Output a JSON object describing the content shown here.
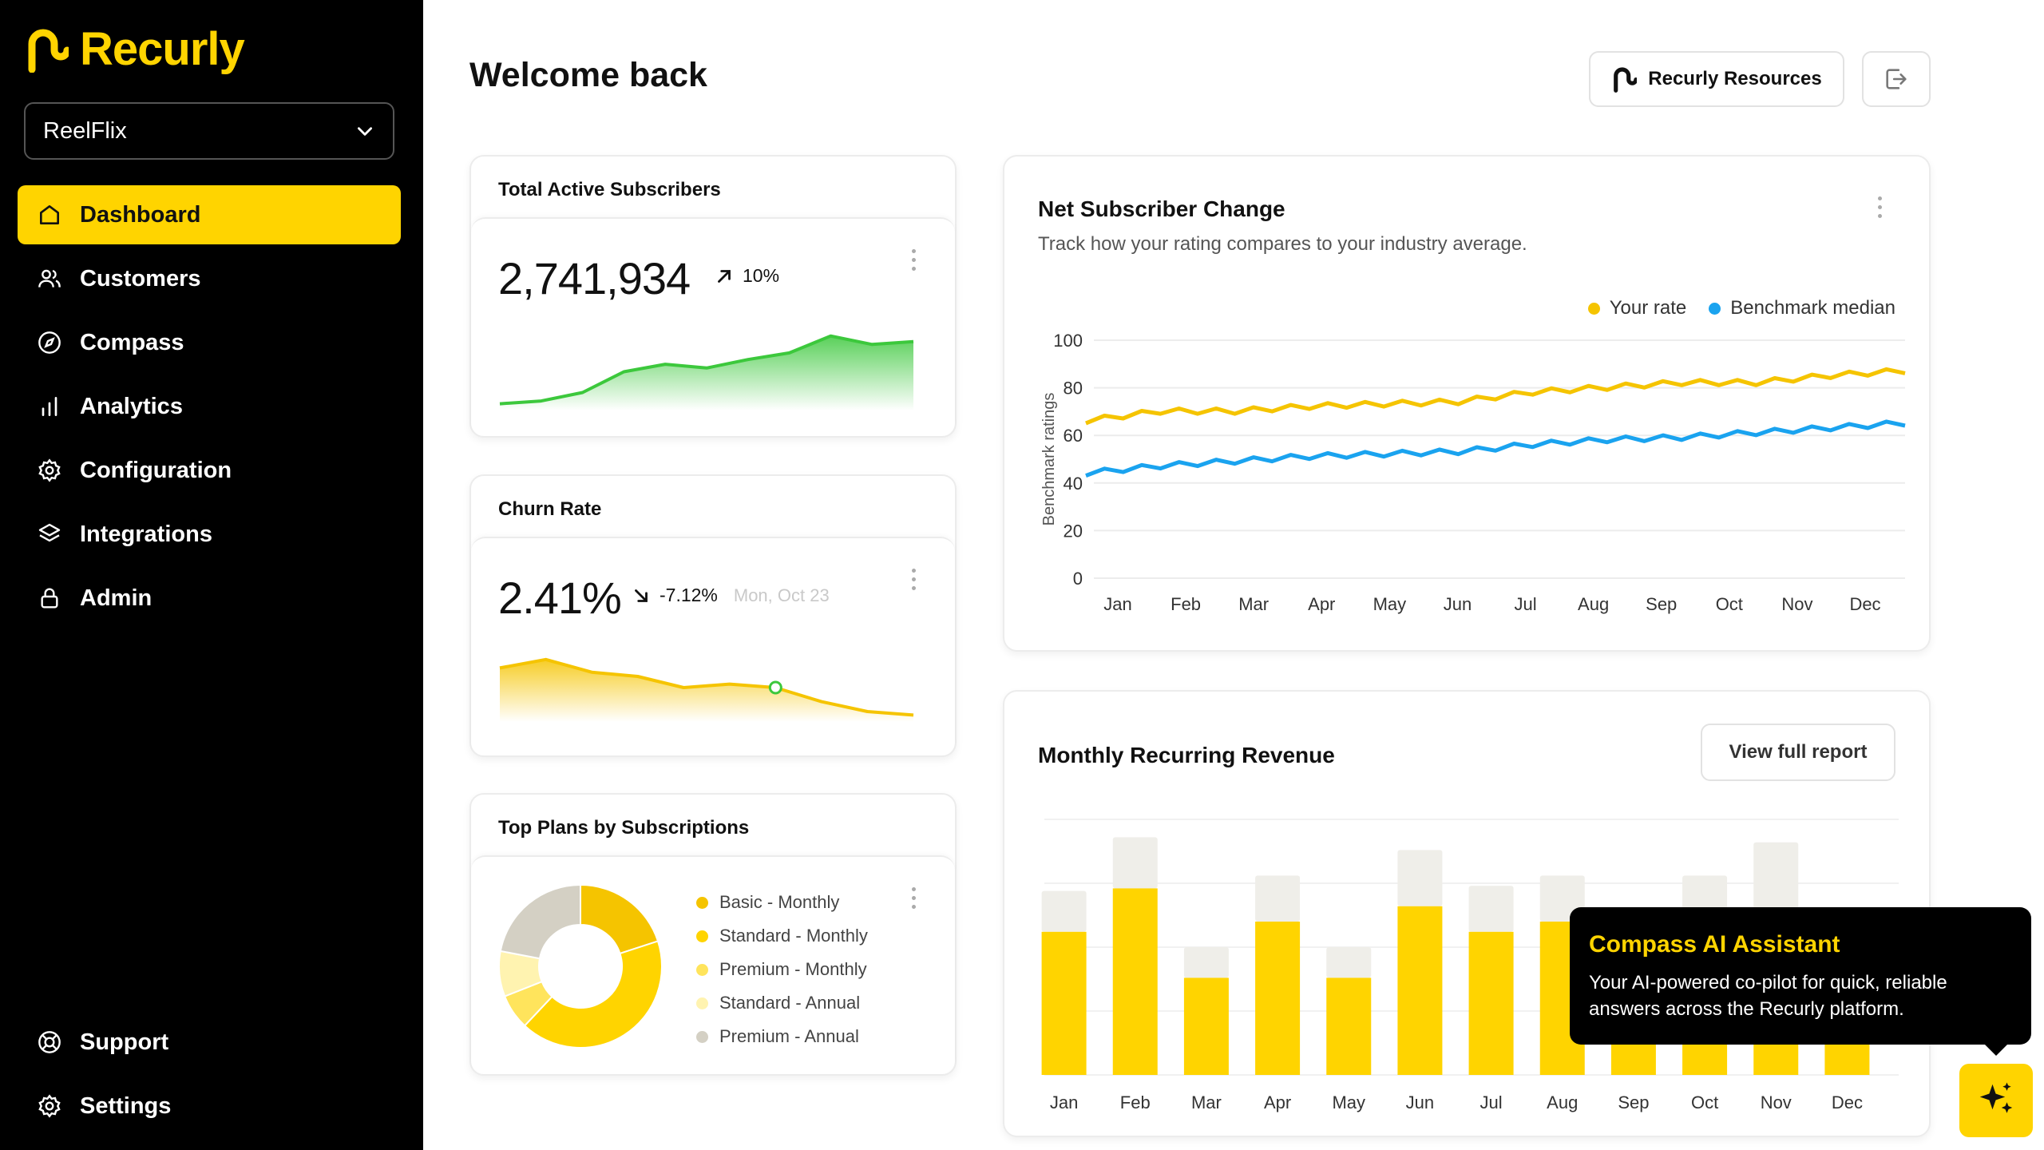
{
  "app": {
    "brand": "Recurly"
  },
  "sidebar": {
    "account": "ReelFlix",
    "items": [
      {
        "label": "Dashboard",
        "icon": "home-icon",
        "active": true
      },
      {
        "label": "Customers",
        "icon": "users-icon"
      },
      {
        "label": "Compass",
        "icon": "compass-icon"
      },
      {
        "label": "Analytics",
        "icon": "bar-chart-icon"
      },
      {
        "label": "Configuration",
        "icon": "gear-icon"
      },
      {
        "label": "Integrations",
        "icon": "layers-icon"
      },
      {
        "label": "Admin",
        "icon": "lock-icon"
      }
    ],
    "bottom": [
      {
        "label": "Support",
        "icon": "lifebuoy-icon"
      },
      {
        "label": "Settings",
        "icon": "gear-icon"
      }
    ]
  },
  "header": {
    "title": "Welcome back",
    "resources_label": "Recurly Resources"
  },
  "colors": {
    "accent": "#ffd400",
    "green": "#3cc83c",
    "blue": "#1aa3ef",
    "sidebar": "#000000"
  },
  "cards": {
    "subscribers": {
      "title": "Total Active Subscribers",
      "value": "2,741,934",
      "delta": "10%",
      "sparkline": [
        2,
        5,
        14,
        36,
        44,
        40,
        49,
        56,
        74,
        65,
        68
      ]
    },
    "churn": {
      "title": "Churn Rate",
      "value": "2.41%",
      "delta": "-7.12%",
      "date": "Mon, Oct 23",
      "sparkline": [
        70,
        82,
        64,
        58,
        42,
        47,
        42,
        22,
        8,
        3
      ]
    },
    "plans": {
      "title": "Top Plans by Subscriptions",
      "items": [
        {
          "label": "Basic - Monthly",
          "value": 20,
          "color": "#f5c400"
        },
        {
          "label": "Standard - Monthly",
          "value": 42,
          "color": "#ffd400"
        },
        {
          "label": "Premium - Monthly",
          "value": 7,
          "color": "#ffe45c"
        },
        {
          "label": "Standard - Annual",
          "value": 9,
          "color": "#fff3b0"
        },
        {
          "label": "Premium - Annual",
          "value": 22,
          "color": "#d4d0c4"
        }
      ]
    },
    "net": {
      "title": "Net Subscriber Change",
      "subtitle": "Track how your rating compares to your industry average.",
      "legend_rate": "Your rate",
      "legend_bench": "Benchmark median"
    },
    "mrr": {
      "title": "Monthly Recurring Revenue",
      "button": "View full report"
    }
  },
  "chart_data": [
    {
      "type": "line",
      "title": "Net Subscriber Change",
      "ylabel": "Benchmark ratings",
      "categories": [
        "Jan",
        "Feb",
        "Mar",
        "Apr",
        "May",
        "Jun",
        "Jul",
        "Aug",
        "Sep",
        "Oct",
        "Nov",
        "Dec"
      ],
      "yticks": [
        "100",
        "80",
        "60",
        "40",
        "20",
        "0"
      ],
      "ylim": [
        0,
        100
      ],
      "grid": true,
      "legend": "top-right",
      "series": [
        {
          "name": "Your rate",
          "color": "#f5c400",
          "values": [
            66,
            70,
            70,
            72,
            73,
            74,
            78,
            80,
            82,
            82,
            85,
            87
          ]
        },
        {
          "name": "Benchmark median",
          "color": "#1aa3ef",
          "values": [
            44,
            47,
            49,
            51,
            52,
            53,
            56,
            58,
            59,
            61,
            63,
            65
          ]
        }
      ]
    },
    {
      "type": "bar",
      "title": "Monthly Recurring Revenue",
      "categories": [
        "Jan",
        "Feb",
        "Mar",
        "Apr",
        "May",
        "Jun",
        "Jul",
        "Aug",
        "Sep",
        "Oct",
        "Nov",
        "Dec"
      ],
      "ylim": [
        0,
        100
      ],
      "grid": true,
      "series": [
        {
          "name": "",
          "color": "#ffd400",
          "values": [
            56,
            73,
            38,
            60,
            38,
            66,
            56,
            60,
            40,
            52,
            55,
            45
          ]
        },
        {
          "name": "",
          "color": "#efeee9",
          "values": [
            16,
            20,
            12,
            18,
            12,
            22,
            18,
            18,
            24,
            26,
            36,
            20
          ]
        }
      ]
    }
  ],
  "assistant": {
    "title": "Compass AI Assistant",
    "body": "Your AI-powered co-pilot for quick, reliable answers across the Recurly platform."
  }
}
